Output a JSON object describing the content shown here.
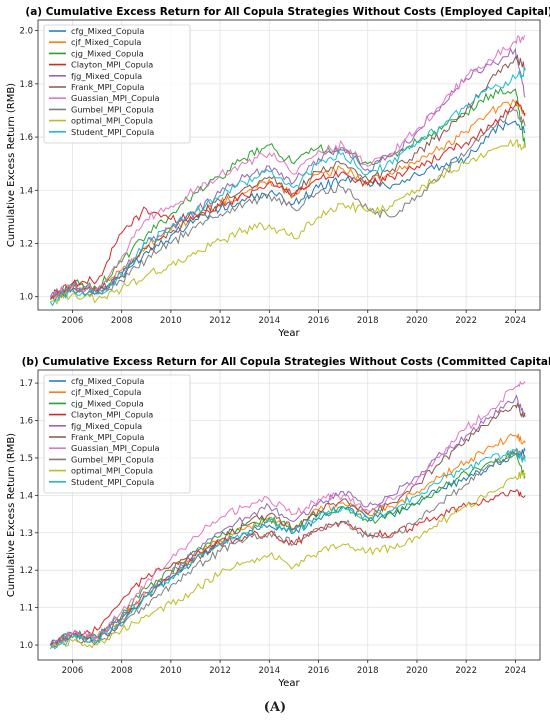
{
  "caption": "(A)",
  "colors": [
    "#1f77b4",
    "#ff7f0e",
    "#2ca02c",
    "#d62728",
    "#9467bd",
    "#8c564b",
    "#e377c2",
    "#7f7f7f",
    "#bcbd22",
    "#17becf"
  ],
  "chart_data": [
    {
      "type": "line",
      "title": "(a) Cumulative Excess Return for All Copula Strategies Without Costs (Employed Capital)",
      "xlabel": "Year",
      "ylabel": "Cumulative Excess Return (RMB)",
      "xlim": [
        2004.6,
        2025.0
      ],
      "ylim": [
        0.95,
        2.04
      ],
      "xticks": [
        2006,
        2008,
        2010,
        2012,
        2014,
        2016,
        2018,
        2020,
        2022,
        2024
      ],
      "yticks": [
        1.0,
        1.2,
        1.4,
        1.6,
        1.8,
        2.0
      ],
      "grid": true,
      "legend_position": "top-left",
      "x": [
        2005.1,
        2006,
        2007,
        2008,
        2009,
        2010,
        2011,
        2012,
        2013,
        2014,
        2015,
        2016,
        2017,
        2018,
        2019,
        2020,
        2021,
        2022,
        2023,
        2024,
        2024.4
      ],
      "series": [
        {
          "name": "cfg_Mixed_Copula",
          "values": [
            0.99,
            1.03,
            1.01,
            1.08,
            1.17,
            1.23,
            1.29,
            1.33,
            1.36,
            1.39,
            1.35,
            1.41,
            1.44,
            1.43,
            1.42,
            1.46,
            1.49,
            1.52,
            1.62,
            1.66,
            1.62
          ]
        },
        {
          "name": "cjf_Mixed_Copula",
          "values": [
            0.99,
            1.04,
            1.02,
            1.1,
            1.19,
            1.25,
            1.3,
            1.35,
            1.39,
            1.44,
            1.38,
            1.46,
            1.48,
            1.43,
            1.46,
            1.51,
            1.56,
            1.62,
            1.7,
            1.73,
            1.68
          ]
        },
        {
          "name": "cjg_Mixed_Copula",
          "values": [
            1.0,
            1.05,
            1.03,
            1.13,
            1.23,
            1.31,
            1.39,
            1.45,
            1.52,
            1.57,
            1.5,
            1.56,
            1.55,
            1.5,
            1.53,
            1.58,
            1.63,
            1.69,
            1.76,
            1.78,
            1.56
          ]
        },
        {
          "name": "Clayton_MPI_Copula",
          "values": [
            1.0,
            1.05,
            1.06,
            1.24,
            1.33,
            1.29,
            1.31,
            1.34,
            1.38,
            1.43,
            1.38,
            1.44,
            1.47,
            1.42,
            1.45,
            1.49,
            1.53,
            1.58,
            1.64,
            1.72,
            1.69
          ]
        },
        {
          "name": "fjg_Mixed_Copula",
          "values": [
            1.0,
            1.04,
            1.02,
            1.09,
            1.2,
            1.26,
            1.32,
            1.39,
            1.45,
            1.49,
            1.43,
            1.52,
            1.56,
            1.48,
            1.53,
            1.62,
            1.72,
            1.82,
            1.87,
            1.93,
            1.75
          ]
        },
        {
          "name": "Frank_MPI_Copula",
          "values": [
            0.99,
            1.03,
            1.02,
            1.08,
            1.18,
            1.24,
            1.3,
            1.36,
            1.41,
            1.45,
            1.39,
            1.47,
            1.5,
            1.44,
            1.48,
            1.54,
            1.61,
            1.7,
            1.82,
            1.9,
            1.86
          ]
        },
        {
          "name": "Guassian_MPI_Copula",
          "values": [
            1.0,
            1.04,
            1.03,
            1.15,
            1.29,
            1.34,
            1.4,
            1.46,
            1.5,
            1.54,
            1.46,
            1.55,
            1.57,
            1.49,
            1.54,
            1.63,
            1.72,
            1.83,
            1.89,
            1.96,
            1.98
          ]
        },
        {
          "name": "Gumbel_MPI_Copula",
          "values": [
            0.99,
            1.03,
            1.01,
            1.06,
            1.14,
            1.2,
            1.26,
            1.31,
            1.35,
            1.38,
            1.33,
            1.39,
            1.41,
            1.33,
            1.3,
            1.38,
            1.46,
            1.54,
            1.64,
            1.7,
            1.64
          ]
        },
        {
          "name": "optimal_MPI_Copula",
          "values": [
            0.98,
            1.01,
            0.99,
            1.03,
            1.08,
            1.12,
            1.16,
            1.21,
            1.25,
            1.27,
            1.22,
            1.3,
            1.35,
            1.32,
            1.34,
            1.4,
            1.46,
            1.5,
            1.55,
            1.58,
            1.56
          ]
        },
        {
          "name": "Student_MPI_Copula",
          "values": [
            0.98,
            1.02,
            1.01,
            1.08,
            1.2,
            1.26,
            1.32,
            1.38,
            1.43,
            1.47,
            1.41,
            1.5,
            1.54,
            1.46,
            1.5,
            1.58,
            1.64,
            1.72,
            1.78,
            1.82,
            1.85
          ]
        }
      ]
    },
    {
      "type": "line",
      "title": "(b) Cumulative Excess Return for All Copula Strategies Without Costs (Committed Capital)",
      "xlabel": "Year",
      "ylabel": "Cumulative Excess Return (RMB)",
      "xlim": [
        2004.6,
        2025.0
      ],
      "ylim": [
        0.96,
        1.735
      ],
      "xticks": [
        2006,
        2008,
        2010,
        2012,
        2014,
        2016,
        2018,
        2020,
        2022,
        2024
      ],
      "yticks": [
        1.0,
        1.1,
        1.2,
        1.3,
        1.4,
        1.5,
        1.6,
        1.7
      ],
      "grid": true,
      "legend_position": "top-left",
      "x": [
        2005.1,
        2006,
        2007,
        2008,
        2009,
        2010,
        2011,
        2012,
        2013,
        2014,
        2015,
        2016,
        2017,
        2018,
        2019,
        2020,
        2021,
        2022,
        2023,
        2024,
        2024.4
      ],
      "series": [
        {
          "name": "cfg_Mixed_Copula",
          "values": [
            1.0,
            1.03,
            1.02,
            1.07,
            1.13,
            1.18,
            1.23,
            1.27,
            1.3,
            1.32,
            1.3,
            1.34,
            1.37,
            1.34,
            1.35,
            1.38,
            1.42,
            1.44,
            1.48,
            1.51,
            1.52
          ]
        },
        {
          "name": "cjf_Mixed_Copula",
          "values": [
            1.0,
            1.03,
            1.02,
            1.07,
            1.14,
            1.19,
            1.24,
            1.28,
            1.31,
            1.34,
            1.31,
            1.36,
            1.38,
            1.35,
            1.37,
            1.41,
            1.45,
            1.49,
            1.53,
            1.56,
            1.54
          ]
        },
        {
          "name": "cjg_Mixed_Copula",
          "values": [
            1.0,
            1.03,
            1.02,
            1.08,
            1.15,
            1.2,
            1.25,
            1.29,
            1.32,
            1.34,
            1.31,
            1.35,
            1.37,
            1.33,
            1.35,
            1.38,
            1.42,
            1.46,
            1.49,
            1.51,
            1.45
          ]
        },
        {
          "name": "Clayton_MPI_Copula",
          "values": [
            1.0,
            1.03,
            1.04,
            1.12,
            1.18,
            1.21,
            1.24,
            1.27,
            1.29,
            1.3,
            1.27,
            1.31,
            1.33,
            1.29,
            1.3,
            1.32,
            1.35,
            1.37,
            1.39,
            1.41,
            1.4
          ]
        },
        {
          "name": "fjg_Mixed_Copula",
          "values": [
            1.0,
            1.03,
            1.02,
            1.07,
            1.14,
            1.19,
            1.25,
            1.3,
            1.34,
            1.37,
            1.33,
            1.38,
            1.41,
            1.37,
            1.4,
            1.45,
            1.51,
            1.56,
            1.61,
            1.66,
            1.62
          ]
        },
        {
          "name": "Frank_MPI_Copula",
          "values": [
            1.0,
            1.02,
            1.01,
            1.06,
            1.13,
            1.18,
            1.23,
            1.28,
            1.32,
            1.35,
            1.31,
            1.36,
            1.39,
            1.35,
            1.38,
            1.43,
            1.49,
            1.55,
            1.6,
            1.64,
            1.61
          ]
        },
        {
          "name": "Guassian_MPI_Copula",
          "values": [
            1.0,
            1.03,
            1.02,
            1.09,
            1.17,
            1.23,
            1.29,
            1.34,
            1.37,
            1.39,
            1.35,
            1.39,
            1.4,
            1.36,
            1.39,
            1.44,
            1.51,
            1.58,
            1.63,
            1.69,
            1.7
          ]
        },
        {
          "name": "Gumbel_MPI_Copula",
          "values": [
            1.0,
            1.02,
            1.01,
            1.05,
            1.11,
            1.16,
            1.21,
            1.25,
            1.28,
            1.3,
            1.27,
            1.31,
            1.33,
            1.29,
            1.29,
            1.33,
            1.38,
            1.43,
            1.48,
            1.52,
            1.5
          ]
        },
        {
          "name": "optimal_MPI_Copula",
          "values": [
            0.99,
            1.01,
            1.0,
            1.04,
            1.08,
            1.11,
            1.15,
            1.19,
            1.22,
            1.24,
            1.21,
            1.25,
            1.27,
            1.25,
            1.26,
            1.29,
            1.33,
            1.37,
            1.41,
            1.45,
            1.46
          ]
        },
        {
          "name": "Student_MPI_Copula",
          "values": [
            0.99,
            1.02,
            1.01,
            1.06,
            1.13,
            1.18,
            1.23,
            1.27,
            1.3,
            1.33,
            1.3,
            1.34,
            1.37,
            1.34,
            1.36,
            1.4,
            1.44,
            1.47,
            1.5,
            1.52,
            1.49
          ]
        }
      ]
    }
  ]
}
